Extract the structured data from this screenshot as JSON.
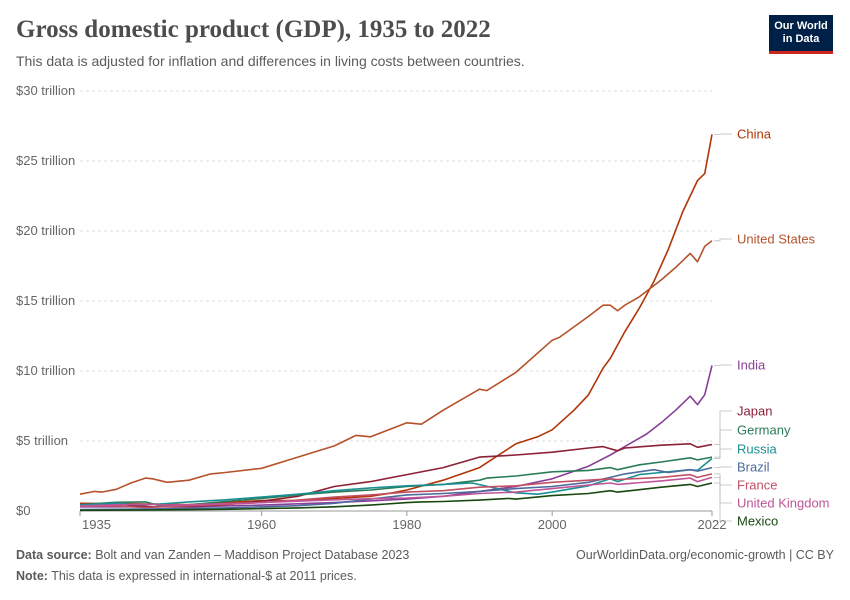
{
  "header": {
    "title": "Gross domestic product (GDP), 1935 to 2022",
    "subtitle": "This data is adjusted for inflation and differences in living costs between countries.",
    "logo_line1": "Our World",
    "logo_line2": "in Data"
  },
  "footer": {
    "source_label": "Data source:",
    "source_text": "Bolt and van Zanden – Maddison Project Database 2023",
    "note_label": "Note:",
    "note_text": "This data is expressed in international-$ at 2011 prices.",
    "link": "OurWorldinData.org/economic-growth | CC BY"
  },
  "chart_data": {
    "type": "line",
    "title": "Gross domestic product (GDP), 1935 to 2022",
    "xlim": [
      1935,
      2022
    ],
    "ylim": [
      0,
      30
    ],
    "y_unit": "trillion",
    "x_ticks": [
      1935,
      1960,
      1980,
      2000,
      2022
    ],
    "y_ticks": [
      {
        "value": 0,
        "label": "$0"
      },
      {
        "value": 5,
        "label": "$5 trillion"
      },
      {
        "value": 10,
        "label": "$10 trillion"
      },
      {
        "value": 15,
        "label": "$15 trillion"
      },
      {
        "value": 20,
        "label": "$20 trillion"
      },
      {
        "value": 25,
        "label": "$25 trillion"
      },
      {
        "value": 30,
        "label": "$30 trillion"
      }
    ],
    "grid": "horizontal-dashed",
    "legend": "right-labels",
    "series": [
      {
        "name": "China",
        "color": "#b13507",
        "points": [
          [
            1935,
            0.55
          ],
          [
            1945,
            0.5
          ],
          [
            1950,
            0.45
          ],
          [
            1955,
            0.6
          ],
          [
            1960,
            0.75
          ],
          [
            1965,
            0.75
          ],
          [
            1970,
            0.9
          ],
          [
            1975,
            1.05
          ],
          [
            1978,
            1.3
          ],
          [
            1980,
            1.5
          ],
          [
            1985,
            2.2
          ],
          [
            1990,
            3.1
          ],
          [
            1995,
            4.8
          ],
          [
            1998,
            5.3
          ],
          [
            2000,
            5.8
          ],
          [
            2003,
            7.2
          ],
          [
            2005,
            8.3
          ],
          [
            2007,
            10.2
          ],
          [
            2008,
            10.9
          ],
          [
            2010,
            12.8
          ],
          [
            2012,
            14.5
          ],
          [
            2014,
            16.4
          ],
          [
            2016,
            18.7
          ],
          [
            2018,
            21.4
          ],
          [
            2020,
            23.6
          ],
          [
            2021,
            24.1
          ],
          [
            2022,
            26.9
          ]
        ]
      },
      {
        "name": "United States",
        "color": "#b6522b",
        "points": [
          [
            1935,
            1.2
          ],
          [
            1937,
            1.4
          ],
          [
            1938,
            1.35
          ],
          [
            1940,
            1.55
          ],
          [
            1942,
            2.0
          ],
          [
            1944,
            2.35
          ],
          [
            1945,
            2.3
          ],
          [
            1947,
            2.05
          ],
          [
            1950,
            2.2
          ],
          [
            1953,
            2.65
          ],
          [
            1955,
            2.75
          ],
          [
            1960,
            3.05
          ],
          [
            1965,
            3.85
          ],
          [
            1970,
            4.65
          ],
          [
            1973,
            5.4
          ],
          [
            1975,
            5.3
          ],
          [
            1980,
            6.3
          ],
          [
            1982,
            6.2
          ],
          [
            1985,
            7.2
          ],
          [
            1990,
            8.7
          ],
          [
            1991,
            8.6
          ],
          [
            1995,
            9.9
          ],
          [
            2000,
            12.2
          ],
          [
            2001,
            12.4
          ],
          [
            2005,
            13.9
          ],
          [
            2007,
            14.7
          ],
          [
            2008,
            14.7
          ],
          [
            2009,
            14.3
          ],
          [
            2010,
            14.7
          ],
          [
            2012,
            15.3
          ],
          [
            2015,
            16.5
          ],
          [
            2017,
            17.4
          ],
          [
            2019,
            18.4
          ],
          [
            2020,
            17.8
          ],
          [
            2021,
            18.9
          ],
          [
            2022,
            19.3
          ]
        ]
      },
      {
        "name": "India",
        "color": "#883f98",
        "points": [
          [
            1935,
            0.3
          ],
          [
            1950,
            0.3
          ],
          [
            1960,
            0.42
          ],
          [
            1970,
            0.6
          ],
          [
            1980,
            0.85
          ],
          [
            1985,
            1.05
          ],
          [
            1990,
            1.4
          ],
          [
            1995,
            1.75
          ],
          [
            2000,
            2.3
          ],
          [
            2005,
            3.2
          ],
          [
            2008,
            4.0
          ],
          [
            2010,
            4.6
          ],
          [
            2013,
            5.5
          ],
          [
            2015,
            6.3
          ],
          [
            2017,
            7.2
          ],
          [
            2019,
            8.2
          ],
          [
            2020,
            7.6
          ],
          [
            2021,
            8.3
          ],
          [
            2022,
            10.4
          ]
        ]
      },
      {
        "name": "Japan",
        "color": "#8c2136",
        "points": [
          [
            1935,
            0.4
          ],
          [
            1940,
            0.48
          ],
          [
            1945,
            0.3
          ],
          [
            1950,
            0.33
          ],
          [
            1955,
            0.45
          ],
          [
            1960,
            0.7
          ],
          [
            1965,
            1.05
          ],
          [
            1970,
            1.75
          ],
          [
            1975,
            2.1
          ],
          [
            1980,
            2.6
          ],
          [
            1985,
            3.1
          ],
          [
            1990,
            3.85
          ],
          [
            1995,
            4.0
          ],
          [
            2000,
            4.2
          ],
          [
            2005,
            4.5
          ],
          [
            2007,
            4.6
          ],
          [
            2009,
            4.3
          ],
          [
            2010,
            4.5
          ],
          [
            2015,
            4.7
          ],
          [
            2019,
            4.8
          ],
          [
            2020,
            4.55
          ],
          [
            2022,
            4.75
          ]
        ]
      },
      {
        "name": "Germany",
        "color": "#2a7b58",
        "points": [
          [
            1935,
            0.45
          ],
          [
            1940,
            0.62
          ],
          [
            1944,
            0.65
          ],
          [
            1946,
            0.38
          ],
          [
            1950,
            0.45
          ],
          [
            1955,
            0.68
          ],
          [
            1960,
            0.9
          ],
          [
            1965,
            1.15
          ],
          [
            1970,
            1.35
          ],
          [
            1975,
            1.5
          ],
          [
            1980,
            1.75
          ],
          [
            1985,
            1.9
          ],
          [
            1990,
            2.2
          ],
          [
            1991,
            2.35
          ],
          [
            1995,
            2.5
          ],
          [
            2000,
            2.8
          ],
          [
            2005,
            2.9
          ],
          [
            2008,
            3.1
          ],
          [
            2009,
            2.95
          ],
          [
            2012,
            3.3
          ],
          [
            2015,
            3.5
          ],
          [
            2019,
            3.8
          ],
          [
            2020,
            3.65
          ],
          [
            2022,
            3.85
          ]
        ]
      },
      {
        "name": "Russia",
        "color": "#1b8f94",
        "points": [
          [
            1935,
            0.42
          ],
          [
            1940,
            0.55
          ],
          [
            1943,
            0.45
          ],
          [
            1946,
            0.5
          ],
          [
            1950,
            0.65
          ],
          [
            1955,
            0.8
          ],
          [
            1960,
            1.0
          ],
          [
            1965,
            1.2
          ],
          [
            1970,
            1.45
          ],
          [
            1975,
            1.65
          ],
          [
            1980,
            1.8
          ],
          [
            1985,
            1.9
          ],
          [
            1989,
            2.0
          ],
          [
            1992,
            1.65
          ],
          [
            1995,
            1.3
          ],
          [
            1998,
            1.2
          ],
          [
            2000,
            1.35
          ],
          [
            2005,
            1.8
          ],
          [
            2008,
            2.3
          ],
          [
            2009,
            2.1
          ],
          [
            2012,
            2.6
          ],
          [
            2015,
            2.75
          ],
          [
            2019,
            2.95
          ],
          [
            2020,
            2.9
          ],
          [
            2022,
            3.75
          ]
        ]
      },
      {
        "name": "Brazil",
        "color": "#4c6a9c",
        "points": [
          [
            1935,
            0.1
          ],
          [
            1945,
            0.15
          ],
          [
            1955,
            0.22
          ],
          [
            1960,
            0.3
          ],
          [
            1965,
            0.38
          ],
          [
            1970,
            0.55
          ],
          [
            1975,
            0.85
          ],
          [
            1980,
            1.15
          ],
          [
            1985,
            1.25
          ],
          [
            1990,
            1.4
          ],
          [
            1995,
            1.6
          ],
          [
            2000,
            1.75
          ],
          [
            2005,
            2.05
          ],
          [
            2008,
            2.4
          ],
          [
            2010,
            2.65
          ],
          [
            2014,
            2.95
          ],
          [
            2016,
            2.75
          ],
          [
            2019,
            2.95
          ],
          [
            2020,
            2.85
          ],
          [
            2022,
            3.1
          ]
        ]
      },
      {
        "name": "France",
        "color": "#c15065",
        "points": [
          [
            1935,
            0.35
          ],
          [
            1940,
            0.35
          ],
          [
            1944,
            0.25
          ],
          [
            1946,
            0.3
          ],
          [
            1950,
            0.38
          ],
          [
            1955,
            0.48
          ],
          [
            1960,
            0.6
          ],
          [
            1965,
            0.78
          ],
          [
            1970,
            1.0
          ],
          [
            1975,
            1.15
          ],
          [
            1980,
            1.35
          ],
          [
            1985,
            1.45
          ],
          [
            1990,
            1.7
          ],
          [
            1995,
            1.8
          ],
          [
            2000,
            2.05
          ],
          [
            2005,
            2.2
          ],
          [
            2008,
            2.3
          ],
          [
            2009,
            2.25
          ],
          [
            2015,
            2.4
          ],
          [
            2019,
            2.6
          ],
          [
            2020,
            2.4
          ],
          [
            2022,
            2.65
          ]
        ]
      },
      {
        "name": "United Kingdom",
        "color": "#be5599",
        "points": [
          [
            1935,
            0.35
          ],
          [
            1940,
            0.45
          ],
          [
            1945,
            0.48
          ],
          [
            1947,
            0.42
          ],
          [
            1950,
            0.45
          ],
          [
            1955,
            0.52
          ],
          [
            1960,
            0.6
          ],
          [
            1965,
            0.7
          ],
          [
            1970,
            0.8
          ],
          [
            1975,
            0.88
          ],
          [
            1980,
            0.93
          ],
          [
            1985,
            1.05
          ],
          [
            1990,
            1.25
          ],
          [
            1995,
            1.35
          ],
          [
            2000,
            1.6
          ],
          [
            2005,
            1.85
          ],
          [
            2008,
            2.0
          ],
          [
            2009,
            1.9
          ],
          [
            2015,
            2.15
          ],
          [
            2019,
            2.35
          ],
          [
            2020,
            2.1
          ],
          [
            2022,
            2.4
          ]
        ]
      },
      {
        "name": "Mexico",
        "color": "#18470f",
        "points": [
          [
            1935,
            0.05
          ],
          [
            1945,
            0.08
          ],
          [
            1955,
            0.12
          ],
          [
            1960,
            0.17
          ],
          [
            1965,
            0.22
          ],
          [
            1970,
            0.3
          ],
          [
            1975,
            0.42
          ],
          [
            1980,
            0.6
          ],
          [
            1982,
            0.65
          ],
          [
            1985,
            0.68
          ],
          [
            1990,
            0.78
          ],
          [
            1994,
            0.9
          ],
          [
            1995,
            0.85
          ],
          [
            2000,
            1.1
          ],
          [
            2005,
            1.25
          ],
          [
            2008,
            1.45
          ],
          [
            2009,
            1.35
          ],
          [
            2015,
            1.7
          ],
          [
            2019,
            1.9
          ],
          [
            2020,
            1.75
          ],
          [
            2022,
            2.0
          ]
        ]
      }
    ]
  }
}
